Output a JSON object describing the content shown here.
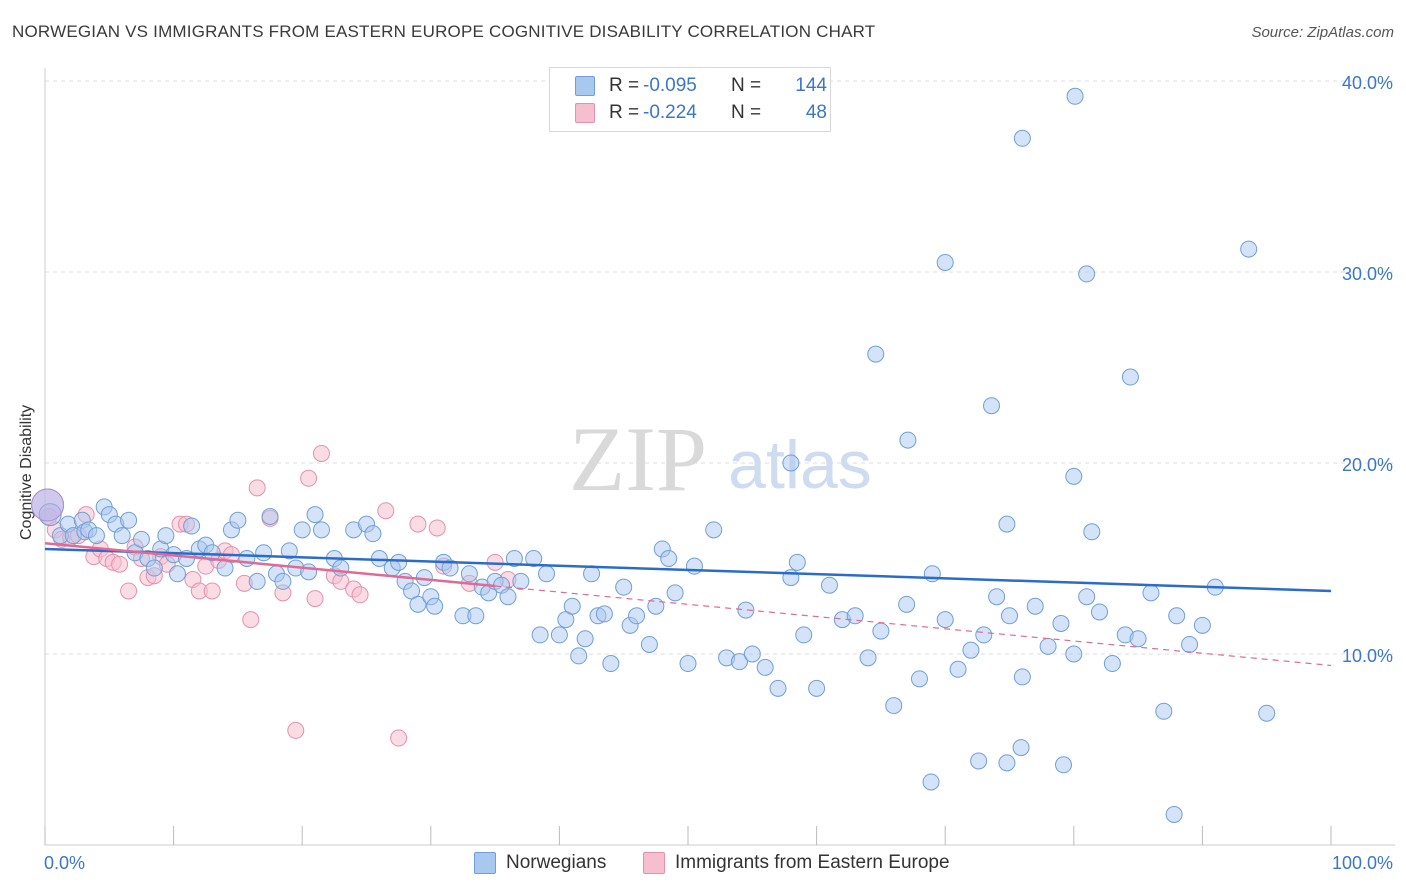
{
  "title": "NORWEGIAN VS IMMIGRANTS FROM EASTERN EUROPE COGNITIVE DISABILITY CORRELATION CHART",
  "source": "Source: ZipAtlas.com",
  "watermark": {
    "zip": "ZIP",
    "atlas": "atlas"
  },
  "legend": {
    "r_label": "R =",
    "n_label": "N =",
    "rows": [
      {
        "r_value": "-0.095",
        "n_value": "144"
      },
      {
        "r_value": "-0.224",
        "n_value": "48"
      }
    ]
  },
  "colors": {
    "norwegian_fill": "#a9c8ef",
    "norwegian_stroke": "#6f9fd8",
    "norwegian_line": "#2b6ccb",
    "immigrant_fill": "#f6bfd0",
    "immigrant_stroke": "#e690ad",
    "immigrant_line": "#e06a93",
    "tick_label": "#3a76cc",
    "grid": "#dddddd"
  },
  "chart_data": {
    "type": "scatter",
    "title": "NORWEGIAN VS IMMIGRANTS FROM EASTERN EUROPE COGNITIVE DISABILITY CORRELATION CHART",
    "xlabel": "",
    "ylabel": "Cognitive Disability",
    "xlim": [
      0,
      100
    ],
    "ylim": [
      0,
      40
    ],
    "x_tick_labels": [
      "0.0%",
      "100.0%"
    ],
    "y_ticks": [
      10,
      20,
      30,
      40
    ],
    "y_tick_labels": [
      "10.0%",
      "20.0%",
      "30.0%",
      "40.0%"
    ],
    "grid": true,
    "legend_position": "top-center",
    "series": [
      {
        "name": "Norwegians",
        "r": -0.095,
        "n": 144,
        "trend": {
          "x": [
            0,
            100
          ],
          "y": [
            15.5,
            13.3
          ],
          "dashed_from": null
        },
        "points": [
          [
            0.2,
            17.8
          ],
          [
            0.4,
            17.3
          ],
          [
            1.2,
            16.2
          ],
          [
            1.8,
            16.8
          ],
          [
            2.2,
            16.2
          ],
          [
            2.9,
            17.0
          ],
          [
            3.1,
            16.4
          ],
          [
            3.4,
            16.5
          ],
          [
            4.0,
            16.2
          ],
          [
            4.6,
            17.7
          ],
          [
            5.0,
            17.3
          ],
          [
            5.5,
            16.8
          ],
          [
            6.0,
            16.2
          ],
          [
            6.5,
            17.0
          ],
          [
            7.0,
            15.3
          ],
          [
            7.5,
            16.0
          ],
          [
            8.0,
            15.0
          ],
          [
            8.5,
            14.5
          ],
          [
            9.0,
            15.5
          ],
          [
            9.4,
            16.2
          ],
          [
            10.0,
            15.2
          ],
          [
            10.3,
            14.2
          ],
          [
            11.0,
            15.0
          ],
          [
            11.4,
            16.7
          ],
          [
            12.0,
            15.5
          ],
          [
            12.5,
            15.7
          ],
          [
            13.0,
            15.3
          ],
          [
            14.0,
            14.5
          ],
          [
            14.5,
            16.5
          ],
          [
            15.0,
            17.0
          ],
          [
            15.7,
            15.0
          ],
          [
            16.5,
            13.8
          ],
          [
            17.0,
            15.3
          ],
          [
            17.5,
            17.2
          ],
          [
            18.0,
            14.2
          ],
          [
            18.5,
            13.8
          ],
          [
            19.0,
            15.4
          ],
          [
            19.5,
            14.5
          ],
          [
            20.0,
            16.5
          ],
          [
            20.5,
            14.3
          ],
          [
            21.0,
            17.3
          ],
          [
            21.5,
            16.5
          ],
          [
            22.5,
            15.0
          ],
          [
            23.0,
            14.5
          ],
          [
            24.0,
            16.5
          ],
          [
            25.0,
            16.8
          ],
          [
            25.5,
            16.3
          ],
          [
            26.0,
            15.0
          ],
          [
            27.0,
            14.5
          ],
          [
            27.5,
            14.8
          ],
          [
            28.0,
            13.8
          ],
          [
            28.5,
            13.3
          ],
          [
            29.0,
            12.6
          ],
          [
            29.5,
            14.0
          ],
          [
            30.0,
            13.0
          ],
          [
            30.3,
            12.5
          ],
          [
            31.0,
            14.8
          ],
          [
            31.5,
            14.5
          ],
          [
            32.5,
            12.0
          ],
          [
            33.0,
            14.2
          ],
          [
            33.5,
            12.0
          ],
          [
            34.0,
            13.5
          ],
          [
            34.5,
            13.2
          ],
          [
            35.0,
            13.8
          ],
          [
            35.5,
            13.6
          ],
          [
            36.0,
            13.0
          ],
          [
            36.5,
            15.0
          ],
          [
            37.0,
            13.8
          ],
          [
            38.0,
            15.0
          ],
          [
            38.5,
            11.0
          ],
          [
            39.0,
            14.2
          ],
          [
            40.0,
            11.0
          ],
          [
            40.5,
            11.8
          ],
          [
            41.0,
            12.5
          ],
          [
            41.5,
            9.9
          ],
          [
            42.0,
            10.8
          ],
          [
            42.5,
            14.2
          ],
          [
            43.0,
            12.0
          ],
          [
            43.5,
            12.1
          ],
          [
            44.0,
            9.5
          ],
          [
            45.0,
            13.5
          ],
          [
            45.5,
            11.5
          ],
          [
            46.0,
            12.0
          ],
          [
            47.0,
            10.5
          ],
          [
            47.5,
            12.5
          ],
          [
            48.0,
            15.5
          ],
          [
            48.5,
            15.0
          ],
          [
            49.0,
            13.2
          ],
          [
            50.0,
            9.5
          ],
          [
            50.5,
            14.6
          ],
          [
            52.0,
            16.5
          ],
          [
            53.0,
            9.8
          ],
          [
            54.0,
            9.6
          ],
          [
            54.5,
            12.3
          ],
          [
            55.0,
            10.0
          ],
          [
            56.0,
            9.3
          ],
          [
            57.0,
            8.2
          ],
          [
            58.0,
            14.0
          ],
          [
            58.5,
            14.8
          ],
          [
            59.0,
            11.0
          ],
          [
            60.0,
            8.2
          ],
          [
            61.0,
            13.6
          ],
          [
            62.0,
            11.8
          ],
          [
            63.0,
            12.0
          ],
          [
            64.0,
            9.8
          ],
          [
            65.0,
            11.2
          ],
          [
            66.0,
            7.3
          ],
          [
            67.0,
            12.6
          ],
          [
            68.0,
            8.7
          ],
          [
            69.0,
            14.2
          ],
          [
            70.0,
            11.8
          ],
          [
            71.0,
            9.2
          ],
          [
            72.0,
            10.2
          ],
          [
            73.0,
            11.0
          ],
          [
            74.0,
            13.0
          ],
          [
            75.0,
            12.0
          ],
          [
            76.0,
            8.8
          ],
          [
            77.0,
            12.5
          ],
          [
            78.0,
            10.4
          ],
          [
            79.0,
            11.6
          ],
          [
            80.0,
            10.0
          ],
          [
            81.0,
            13.0
          ],
          [
            82.0,
            12.2
          ],
          [
            83.0,
            9.5
          ],
          [
            84.0,
            11.0
          ],
          [
            85.0,
            10.8
          ],
          [
            86.0,
            13.2
          ],
          [
            87.0,
            7.0
          ],
          [
            88.0,
            12.0
          ],
          [
            89.0,
            10.5
          ],
          [
            90.0,
            11.5
          ],
          [
            91.0,
            13.5
          ],
          [
            64.6,
            25.7
          ],
          [
            67.1,
            21.2
          ],
          [
            70.0,
            30.5
          ],
          [
            73.6,
            23.0
          ],
          [
            74.8,
            16.8
          ],
          [
            80.0,
            19.3
          ],
          [
            81.4,
            16.4
          ],
          [
            84.4,
            24.5
          ],
          [
            76.0,
            37.0
          ],
          [
            80.1,
            39.2
          ],
          [
            81.0,
            29.9
          ],
          [
            93.6,
            31.2
          ],
          [
            95.0,
            6.9
          ],
          [
            87.8,
            1.6
          ],
          [
            68.9,
            3.3
          ],
          [
            72.6,
            4.4
          ],
          [
            75.9,
            5.1
          ],
          [
            74.8,
            4.3
          ],
          [
            79.2,
            4.2
          ],
          [
            58.0,
            20.0
          ]
        ]
      },
      {
        "name": "Immigrants from Eastern Europe",
        "r": -0.224,
        "n": 48,
        "trend": {
          "x": [
            0,
            100
          ],
          "y": [
            15.8,
            9.4
          ],
          "dashed_from": 35
        },
        "points": [
          [
            0.3,
            17.2
          ],
          [
            0.8,
            16.5
          ],
          [
            1.3,
            16.0
          ],
          [
            2.0,
            16.1
          ],
          [
            2.6,
            16.2
          ],
          [
            3.2,
            17.3
          ],
          [
            3.8,
            15.1
          ],
          [
            4.3,
            15.5
          ],
          [
            4.8,
            15.0
          ],
          [
            5.3,
            14.8
          ],
          [
            5.8,
            14.7
          ],
          [
            6.5,
            13.3
          ],
          [
            7.0,
            15.6
          ],
          [
            7.5,
            15.0
          ],
          [
            8.0,
            14.0
          ],
          [
            8.5,
            14.1
          ],
          [
            9.0,
            15.1
          ],
          [
            9.5,
            14.7
          ],
          [
            10.5,
            16.8
          ],
          [
            11.0,
            16.8
          ],
          [
            11.5,
            13.9
          ],
          [
            12.0,
            13.3
          ],
          [
            12.5,
            14.6
          ],
          [
            13.0,
            13.3
          ],
          [
            13.5,
            14.9
          ],
          [
            14.0,
            15.4
          ],
          [
            14.5,
            15.2
          ],
          [
            15.5,
            13.7
          ],
          [
            16.0,
            11.8
          ],
          [
            16.5,
            18.7
          ],
          [
            17.5,
            17.1
          ],
          [
            18.5,
            13.2
          ],
          [
            19.5,
            6.0
          ],
          [
            20.5,
            19.2
          ],
          [
            21.0,
            12.9
          ],
          [
            21.5,
            20.5
          ],
          [
            22.5,
            14.1
          ],
          [
            23.0,
            13.8
          ],
          [
            24.0,
            13.4
          ],
          [
            24.5,
            13.1
          ],
          [
            26.5,
            17.5
          ],
          [
            27.5,
            5.6
          ],
          [
            29.0,
            16.8
          ],
          [
            30.5,
            16.6
          ],
          [
            31.0,
            14.6
          ],
          [
            33.0,
            13.7
          ],
          [
            35.0,
            14.8
          ],
          [
            36.0,
            13.9
          ]
        ]
      }
    ]
  }
}
